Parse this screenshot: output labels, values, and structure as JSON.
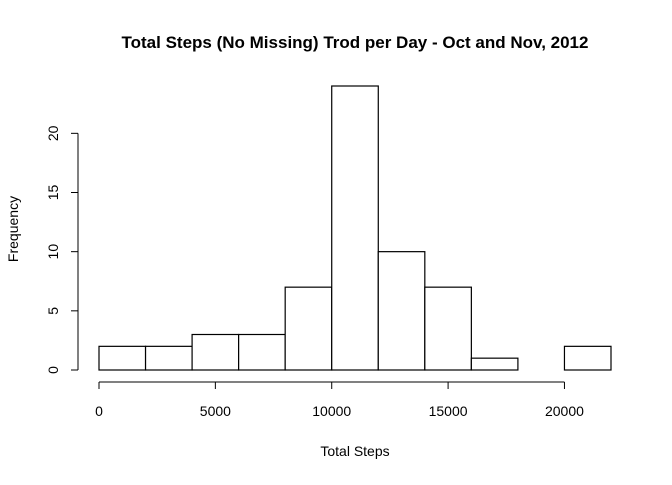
{
  "chart_data": {
    "type": "bar",
    "title": "Total Steps (No Missing) Trod per Day - Oct and Nov, 2012",
    "xlabel": "Total Steps",
    "ylabel": "Frequency",
    "bins": [
      {
        "start": 0,
        "end": 2000,
        "count": 2
      },
      {
        "start": 2000,
        "end": 4000,
        "count": 2
      },
      {
        "start": 4000,
        "end": 6000,
        "count": 3
      },
      {
        "start": 6000,
        "end": 8000,
        "count": 3
      },
      {
        "start": 8000,
        "end": 10000,
        "count": 7
      },
      {
        "start": 10000,
        "end": 12000,
        "count": 24
      },
      {
        "start": 12000,
        "end": 14000,
        "count": 10
      },
      {
        "start": 14000,
        "end": 16000,
        "count": 7
      },
      {
        "start": 16000,
        "end": 18000,
        "count": 1
      },
      {
        "start": 18000,
        "end": 20000,
        "count": 0
      },
      {
        "start": 20000,
        "end": 22000,
        "count": 2
      }
    ],
    "xlim": [
      0,
      22000
    ],
    "ylim": [
      0,
      24
    ],
    "xticks": [
      0,
      5000,
      10000,
      15000,
      20000
    ],
    "yticks": [
      0,
      5,
      10,
      15,
      20
    ],
    "xtick_labels": [
      "0",
      "5000",
      "10000",
      "15000",
      "20000"
    ],
    "ytick_labels": [
      "0",
      "5",
      "10",
      "15",
      "20"
    ],
    "grid": false,
    "bar_fill": "#ffffff",
    "bar_stroke": "#000000"
  }
}
